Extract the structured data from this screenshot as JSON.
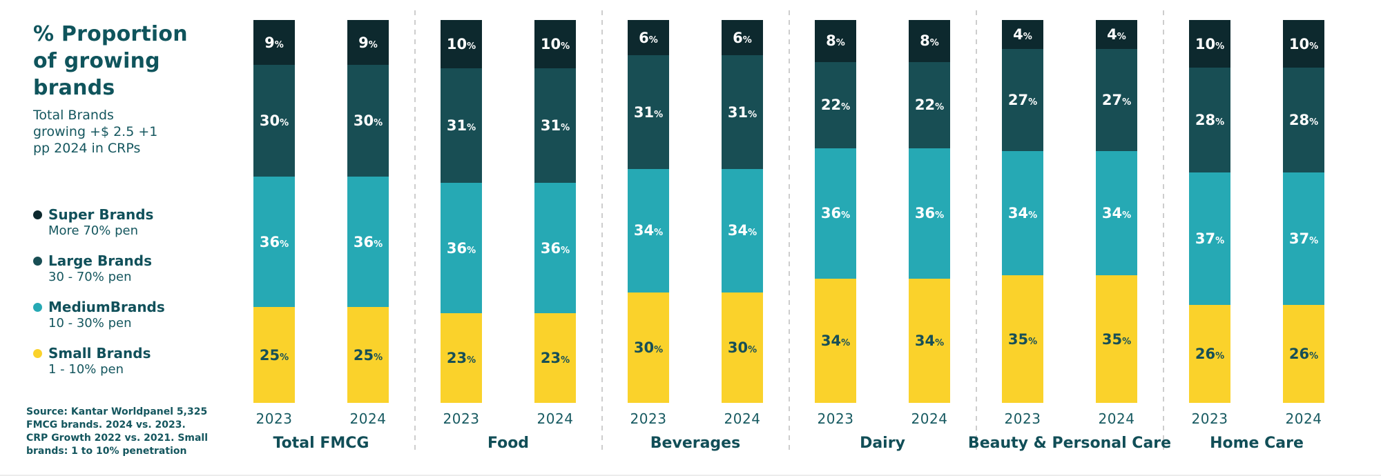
{
  "panel": {
    "title_lines": [
      "% Proportion",
      "of growing",
      "brands"
    ],
    "subtitle_lines": [
      "Total Brands",
      "growing +$ 2.5 +1",
      "pp 2024 in CRPs"
    ],
    "legend": [
      {
        "name": "Super Brands",
        "range": "More 70% pen",
        "color": "#0D292E"
      },
      {
        "name": "Large Brands",
        "range": "30 - 70% pen",
        "color": "#184E54"
      },
      {
        "name": "MediumBrands",
        "range": "10 - 30% pen",
        "color": "#26A9B4"
      },
      {
        "name": "Small Brands",
        "range": "1 - 10% pen",
        "color": "#FAD22B"
      }
    ],
    "source_lines": [
      "Source: Kantar Worldpanel 5,325",
      "FMCG brands. 2024 vs. 2023.",
      "CRP Growth 2022 vs. 2021. Small",
      "brands: 1 to 10% penetration"
    ]
  },
  "chart_data": {
    "type": "bar",
    "stacked": true,
    "unit": "%",
    "title": "% Proportion of growing brands",
    "subtitle": "Total Brands growing +$ 2.5 +1 pp 2024 in CRPs",
    "years": [
      "2023",
      "2024"
    ],
    "series_top_to_bottom": [
      "Super Brands",
      "Large Brands",
      "MediumBrands",
      "Small Brands"
    ],
    "colors_top_to_bottom": [
      "#0D292E",
      "#184E54",
      "#26A9B4",
      "#FAD22B"
    ],
    "label_colors_top_to_bottom": [
      "light",
      "light",
      "light",
      "dark"
    ],
    "ylim": [
      0,
      100
    ],
    "grid": false,
    "legend_position": "left",
    "groups": [
      {
        "label": "Total FMCG",
        "values": {
          "2023": [
            9,
            30,
            36,
            25
          ],
          "2024": [
            9,
            30,
            36,
            25
          ]
        }
      },
      {
        "label": "Food",
        "values": {
          "2023": [
            10,
            31,
            36,
            23
          ],
          "2024": [
            10,
            31,
            36,
            23
          ]
        }
      },
      {
        "label": "Beverages",
        "values": {
          "2023": [
            6,
            31,
            34,
            30
          ],
          "2024": [
            6,
            31,
            34,
            30
          ]
        }
      },
      {
        "label": "Dairy",
        "values": {
          "2023": [
            8,
            22,
            36,
            34
          ],
          "2024": [
            8,
            22,
            36,
            34
          ]
        }
      },
      {
        "label": "Beauty & Personal Care",
        "values": {
          "2023": [
            4,
            27,
            34,
            35
          ],
          "2024": [
            4,
            27,
            34,
            35
          ]
        }
      },
      {
        "label": "Home Care",
        "values": {
          "2023": [
            10,
            28,
            37,
            26
          ],
          "2024": [
            10,
            28,
            37,
            26
          ]
        }
      }
    ]
  }
}
